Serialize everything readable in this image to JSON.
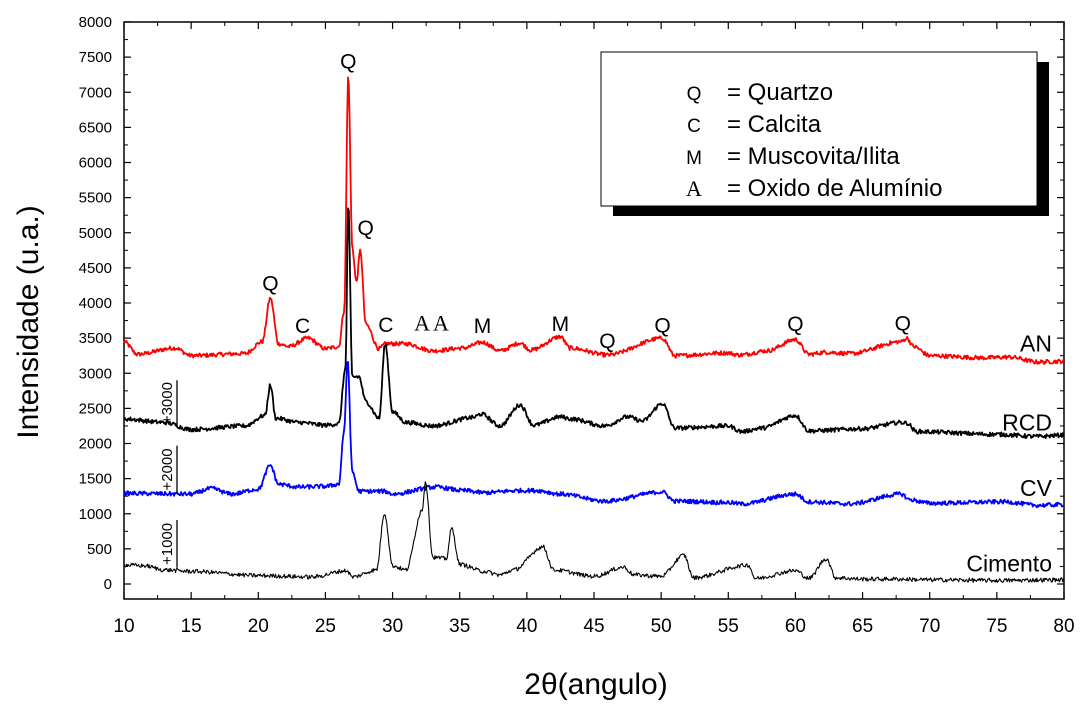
{
  "chart_data": {
    "type": "line",
    "xlabel": "2θ(angulo)",
    "ylabel": "Intensidade (u.a.)",
    "xlim": [
      10,
      80
    ],
    "ylim": [
      -100,
      8000
    ],
    "x_ticks": [
      10,
      15,
      20,
      25,
      30,
      35,
      40,
      45,
      50,
      55,
      60,
      65,
      70,
      75,
      80
    ],
    "y_ticks": [
      0,
      500,
      1000,
      1500,
      2000,
      2500,
      3000,
      3500,
      4000,
      4500,
      5000,
      5500,
      6000,
      6500,
      7000,
      7500,
      8000
    ],
    "grid": false,
    "legend_position": "top-right",
    "legend": [
      {
        "symbol": "Q",
        "text": "= Quartzo"
      },
      {
        "symbol": "C",
        "text": "= Calcita"
      },
      {
        "symbol": "M",
        "text": "= Muscovita/Ilita"
      },
      {
        "symbol": "A",
        "text": "= Oxido de Alumínio"
      }
    ],
    "offset_labels": [
      "+3000",
      "+2000",
      "+1000"
    ],
    "series": [
      {
        "name": "AN",
        "color": "#ff0000",
        "baseline": 3250,
        "points": [
          [
            10,
            3450
          ],
          [
            11,
            3270
          ],
          [
            13.8,
            3360
          ],
          [
            15,
            3250
          ],
          [
            19,
            3280
          ],
          [
            20.3,
            3450
          ],
          [
            20.9,
            4070
          ],
          [
            21.5,
            3420
          ],
          [
            22.3,
            3380
          ],
          [
            23.7,
            3500
          ],
          [
            25,
            3350
          ],
          [
            26,
            3380
          ],
          [
            26.4,
            3900
          ],
          [
            26.7,
            7250
          ],
          [
            27,
            4800
          ],
          [
            27.3,
            4300
          ],
          [
            27.6,
            4750
          ],
          [
            28.0,
            3700
          ],
          [
            29,
            3350
          ],
          [
            29.5,
            3420
          ],
          [
            31,
            3420
          ],
          [
            33,
            3320
          ],
          [
            35.3,
            3360
          ],
          [
            36.7,
            3440
          ],
          [
            38,
            3320
          ],
          [
            39.5,
            3430
          ],
          [
            40.3,
            3330
          ],
          [
            42.5,
            3520
          ],
          [
            43.2,
            3360
          ],
          [
            46,
            3260
          ],
          [
            50.1,
            3500
          ],
          [
            51,
            3250
          ],
          [
            54.9,
            3290
          ],
          [
            55.8,
            3260
          ],
          [
            57.9,
            3320
          ],
          [
            60,
            3480
          ],
          [
            61,
            3270
          ],
          [
            62.3,
            3300
          ],
          [
            64.1,
            3280
          ],
          [
            67.9,
            3450
          ],
          [
            68.3,
            3500
          ],
          [
            68.8,
            3380
          ],
          [
            70,
            3250
          ],
          [
            74,
            3220
          ],
          [
            76,
            3230
          ],
          [
            78,
            3160
          ],
          [
            80,
            3170
          ]
        ]
      },
      {
        "name": "RCD",
        "color": "#000000",
        "baseline": 2200,
        "points": [
          [
            10,
            2350
          ],
          [
            13,
            2300
          ],
          [
            15,
            2200
          ],
          [
            19,
            2250
          ],
          [
            20.5,
            2400
          ],
          [
            20.9,
            2830
          ],
          [
            21.3,
            2360
          ],
          [
            23,
            2300
          ],
          [
            25,
            2260
          ],
          [
            26,
            2280
          ],
          [
            26.5,
            3100
          ],
          [
            26.7,
            5420
          ],
          [
            27,
            2950
          ],
          [
            27.5,
            2950
          ],
          [
            28.0,
            2600
          ],
          [
            29,
            2360
          ],
          [
            29.45,
            3420
          ],
          [
            30,
            2450
          ],
          [
            31,
            2300
          ],
          [
            33,
            2250
          ],
          [
            36,
            2370
          ],
          [
            36.6,
            2420
          ],
          [
            38,
            2250
          ],
          [
            39.5,
            2550
          ],
          [
            40.5,
            2260
          ],
          [
            42.5,
            2380
          ],
          [
            43.3,
            2350
          ],
          [
            45.8,
            2250
          ],
          [
            47.5,
            2380
          ],
          [
            48.6,
            2320
          ],
          [
            50.1,
            2570
          ],
          [
            51,
            2220
          ],
          [
            55,
            2250
          ],
          [
            56,
            2170
          ],
          [
            57.5,
            2220
          ],
          [
            60,
            2400
          ],
          [
            61,
            2180
          ],
          [
            65,
            2210
          ],
          [
            67.9,
            2300
          ],
          [
            68.3,
            2290
          ],
          [
            69,
            2170
          ],
          [
            75,
            2130
          ],
          [
            78,
            2100
          ],
          [
            80,
            2120
          ]
        ]
      },
      {
        "name": "CV",
        "color": "#0000ff",
        "baseline": 1300,
        "points": [
          [
            10,
            1290
          ],
          [
            15,
            1280
          ],
          [
            16.5,
            1360
          ],
          [
            18,
            1280
          ],
          [
            20,
            1350
          ],
          [
            20.9,
            1690
          ],
          [
            21.5,
            1420
          ],
          [
            23,
            1380
          ],
          [
            25,
            1390
          ],
          [
            26,
            1420
          ],
          [
            26.4,
            2200
          ],
          [
            26.65,
            3200
          ],
          [
            27,
            1600
          ],
          [
            27.5,
            1320
          ],
          [
            29.4,
            1320
          ],
          [
            30,
            1280
          ],
          [
            33.2,
            1380
          ],
          [
            35.3,
            1330
          ],
          [
            36.8,
            1300
          ],
          [
            39.4,
            1330
          ],
          [
            40.8,
            1330
          ],
          [
            42.5,
            1280
          ],
          [
            45.8,
            1180
          ],
          [
            50.1,
            1310
          ],
          [
            51,
            1180
          ],
          [
            55,
            1160
          ],
          [
            56,
            1140
          ],
          [
            60,
            1280
          ],
          [
            61,
            1170
          ],
          [
            64,
            1140
          ],
          [
            67.9,
            1280
          ],
          [
            68.5,
            1200
          ],
          [
            70,
            1150
          ],
          [
            75.6,
            1170
          ],
          [
            78,
            1120
          ],
          [
            80,
            1130
          ]
        ]
      },
      {
        "name": "Cimento",
        "color": "#000000",
        "baseline": 150,
        "points": [
          [
            10,
            270
          ],
          [
            11.5,
            260
          ],
          [
            13,
            200
          ],
          [
            15,
            180
          ],
          [
            20,
            120
          ],
          [
            24,
            100
          ],
          [
            26.6,
            190
          ],
          [
            27,
            100
          ],
          [
            28.8,
            200
          ],
          [
            29.4,
            1010
          ],
          [
            30,
            260
          ],
          [
            31,
            200
          ],
          [
            32.2,
            1050
          ],
          [
            32.45,
            1460
          ],
          [
            33,
            380
          ],
          [
            34.0,
            360
          ],
          [
            34.4,
            790
          ],
          [
            35,
            280
          ],
          [
            36.8,
            180
          ],
          [
            38,
            130
          ],
          [
            39,
            200
          ],
          [
            41.2,
            530
          ],
          [
            42,
            200
          ],
          [
            45,
            110
          ],
          [
            47.2,
            240
          ],
          [
            48,
            130
          ],
          [
            50,
            110
          ],
          [
            51.7,
            410
          ],
          [
            52.4,
            90
          ],
          [
            56.5,
            270
          ],
          [
            57,
            80
          ],
          [
            60,
            190
          ],
          [
            61,
            80
          ],
          [
            62.3,
            360
          ],
          [
            63,
            90
          ],
          [
            65,
            70
          ],
          [
            67.5,
            70
          ],
          [
            70,
            60
          ],
          [
            75,
            50
          ],
          [
            80,
            60
          ]
        ]
      }
    ],
    "annotations": [
      {
        "text": "Q",
        "x": 20.9,
        "y": 4180
      },
      {
        "text": "C",
        "x": 23.3,
        "y": 3570
      },
      {
        "text": "Q",
        "x": 26.7,
        "y": 7340
      },
      {
        "text": "Q",
        "x": 28.0,
        "y": 4970
      },
      {
        "text": "C",
        "x": 29.5,
        "y": 3590
      },
      {
        "text": "A",
        "x": 32.2,
        "y": 3610
      },
      {
        "text": "A",
        "x": 33.6,
        "y": 3610
      },
      {
        "text": "M",
        "x": 36.7,
        "y": 3570
      },
      {
        "text": "M",
        "x": 42.5,
        "y": 3600
      },
      {
        "text": "Q",
        "x": 46.0,
        "y": 3360
      },
      {
        "text": "Q",
        "x": 50.1,
        "y": 3580
      },
      {
        "text": "Q",
        "x": 60.0,
        "y": 3600
      },
      {
        "text": "Q",
        "x": 68.0,
        "y": 3610
      }
    ]
  }
}
